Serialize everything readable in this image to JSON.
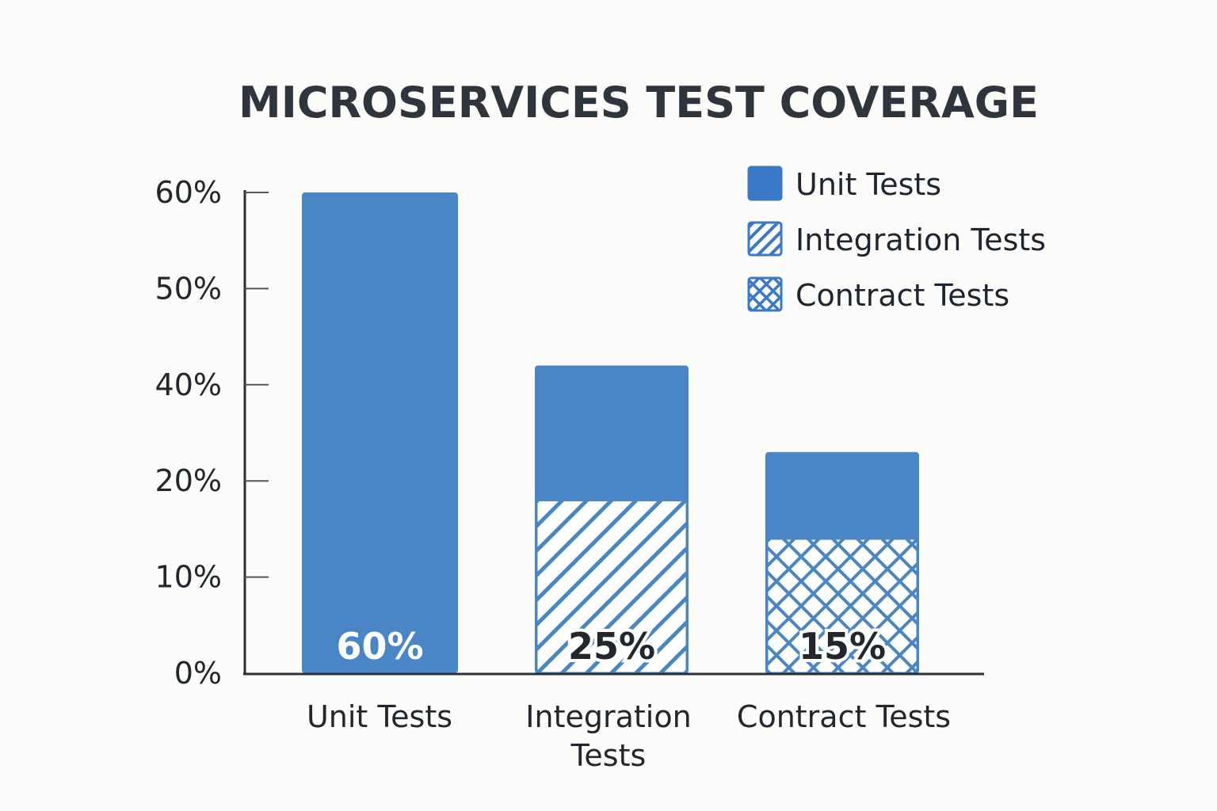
{
  "chart_data": {
    "type": "bar",
    "title": "MICROSERVICES TEST COVERAGE",
    "xlabel": "",
    "ylabel": "",
    "categories": [
      "Unit Tests",
      "Integration Tests",
      "Contract Tests"
    ],
    "category_lines": [
      [
        "Unit Tests"
      ],
      [
        "Integration",
        "Tests"
      ],
      [
        "Contract Tests"
      ]
    ],
    "y_ticks": [
      "0%",
      "10%",
      "20%",
      "40%",
      "50%",
      "60%"
    ],
    "y_tick_values": [
      0,
      10,
      20,
      40,
      50,
      60
    ],
    "ylim": [
      0,
      60
    ],
    "grid": false,
    "series": [
      {
        "values": [
          60,
          42,
          26
        ],
        "pattern": "solid"
      },
      {
        "values": [
          0,
          18,
          14
        ],
        "pattern": [
          "solid",
          "diagonal-hatch",
          "cross-hatch"
        ]
      }
    ],
    "data_labels": [
      "60%",
      "25%",
      "15%"
    ],
    "legend": {
      "position": "top-right",
      "items": [
        {
          "label": "Unit Tests",
          "pattern": "solid"
        },
        {
          "label": "Integration Tests",
          "pattern": "diagonal-hatch"
        },
        {
          "label": "Contract Tests",
          "pattern": "cross-hatch"
        }
      ]
    },
    "colors": {
      "bar": "#4a86c5",
      "legend": "#3a78c8",
      "text": "#22272e",
      "background": "#fcfcfa"
    }
  }
}
